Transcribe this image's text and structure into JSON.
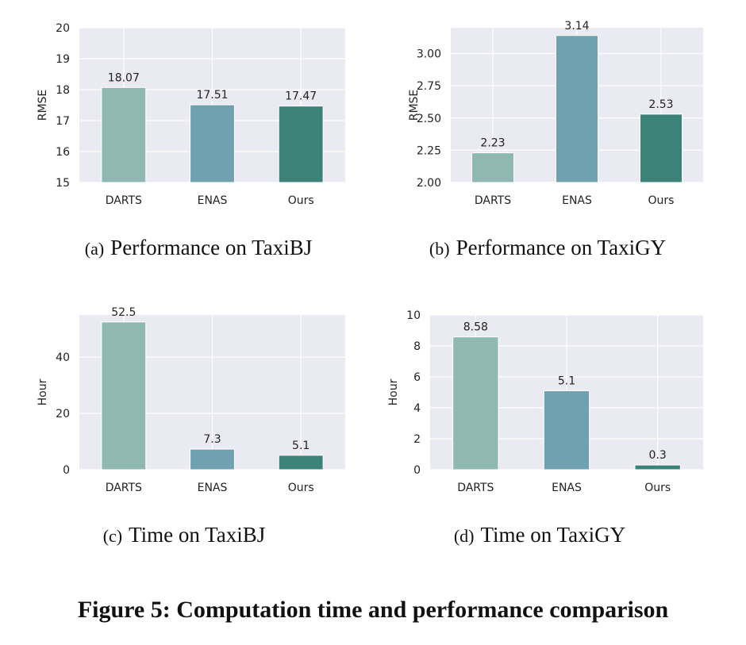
{
  "colors": {
    "darts": "#8fb8b3",
    "enas": "#6fa1b1",
    "ours": "#3c8278",
    "background": "#eaeaf2",
    "grid": "#ffffff"
  },
  "figure_caption": "Figure 5: Computation time and performance comparison",
  "chart_data": [
    {
      "type": "bar",
      "categories": [
        "DARTS",
        "ENAS",
        "Ours"
      ],
      "values": [
        18.07,
        17.51,
        17.47
      ],
      "value_labels": [
        "18.07",
        "17.51",
        "17.47"
      ],
      "ylabel": "RMSE",
      "ylim": [
        15,
        20
      ],
      "yticks": [
        15,
        16,
        17,
        18,
        19,
        20
      ],
      "ytick_labels": [
        "15",
        "16",
        "17",
        "18",
        "19",
        "20"
      ],
      "grid": true,
      "caption_tag": "(a)",
      "caption_text": "Performance on TaxiBJ"
    },
    {
      "type": "bar",
      "categories": [
        "DARTS",
        "ENAS",
        "Ours"
      ],
      "values": [
        2.23,
        3.14,
        2.53
      ],
      "value_labels": [
        "2.23",
        "3.14",
        "2.53"
      ],
      "ylabel": "RMSE",
      "ylim": [
        2.0,
        3.2
      ],
      "yticks": [
        2.0,
        2.25,
        2.5,
        2.75,
        3.0
      ],
      "ytick_labels": [
        "2.00",
        "2.25",
        "2.50",
        "2.75",
        "3.00"
      ],
      "grid": true,
      "caption_tag": "(b)",
      "caption_text": "Performance on TaxiGY"
    },
    {
      "type": "bar",
      "categories": [
        "DARTS",
        "ENAS",
        "Ours"
      ],
      "values": [
        52.5,
        7.3,
        5.1
      ],
      "value_labels": [
        "52.5",
        "7.3",
        "5.1"
      ],
      "ylabel": "Hour",
      "ylim": [
        0,
        55
      ],
      "yticks": [
        0,
        20,
        40
      ],
      "ytick_labels": [
        "0",
        "20",
        "40"
      ],
      "grid": true,
      "caption_tag": "(c)",
      "caption_text": "Time on TaxiBJ"
    },
    {
      "type": "bar",
      "categories": [
        "DARTS",
        "ENAS",
        "Ours"
      ],
      "values": [
        8.58,
        5.1,
        0.3
      ],
      "value_labels": [
        "8.58",
        "5.1",
        "0.3"
      ],
      "ylabel": "Hour",
      "ylim": [
        0,
        10
      ],
      "yticks": [
        0,
        2,
        4,
        6,
        8,
        10
      ],
      "ytick_labels": [
        "0",
        "2",
        "4",
        "6",
        "8",
        "10"
      ],
      "grid": true,
      "caption_tag": "(d)",
      "caption_text": "Time on TaxiGY"
    }
  ]
}
